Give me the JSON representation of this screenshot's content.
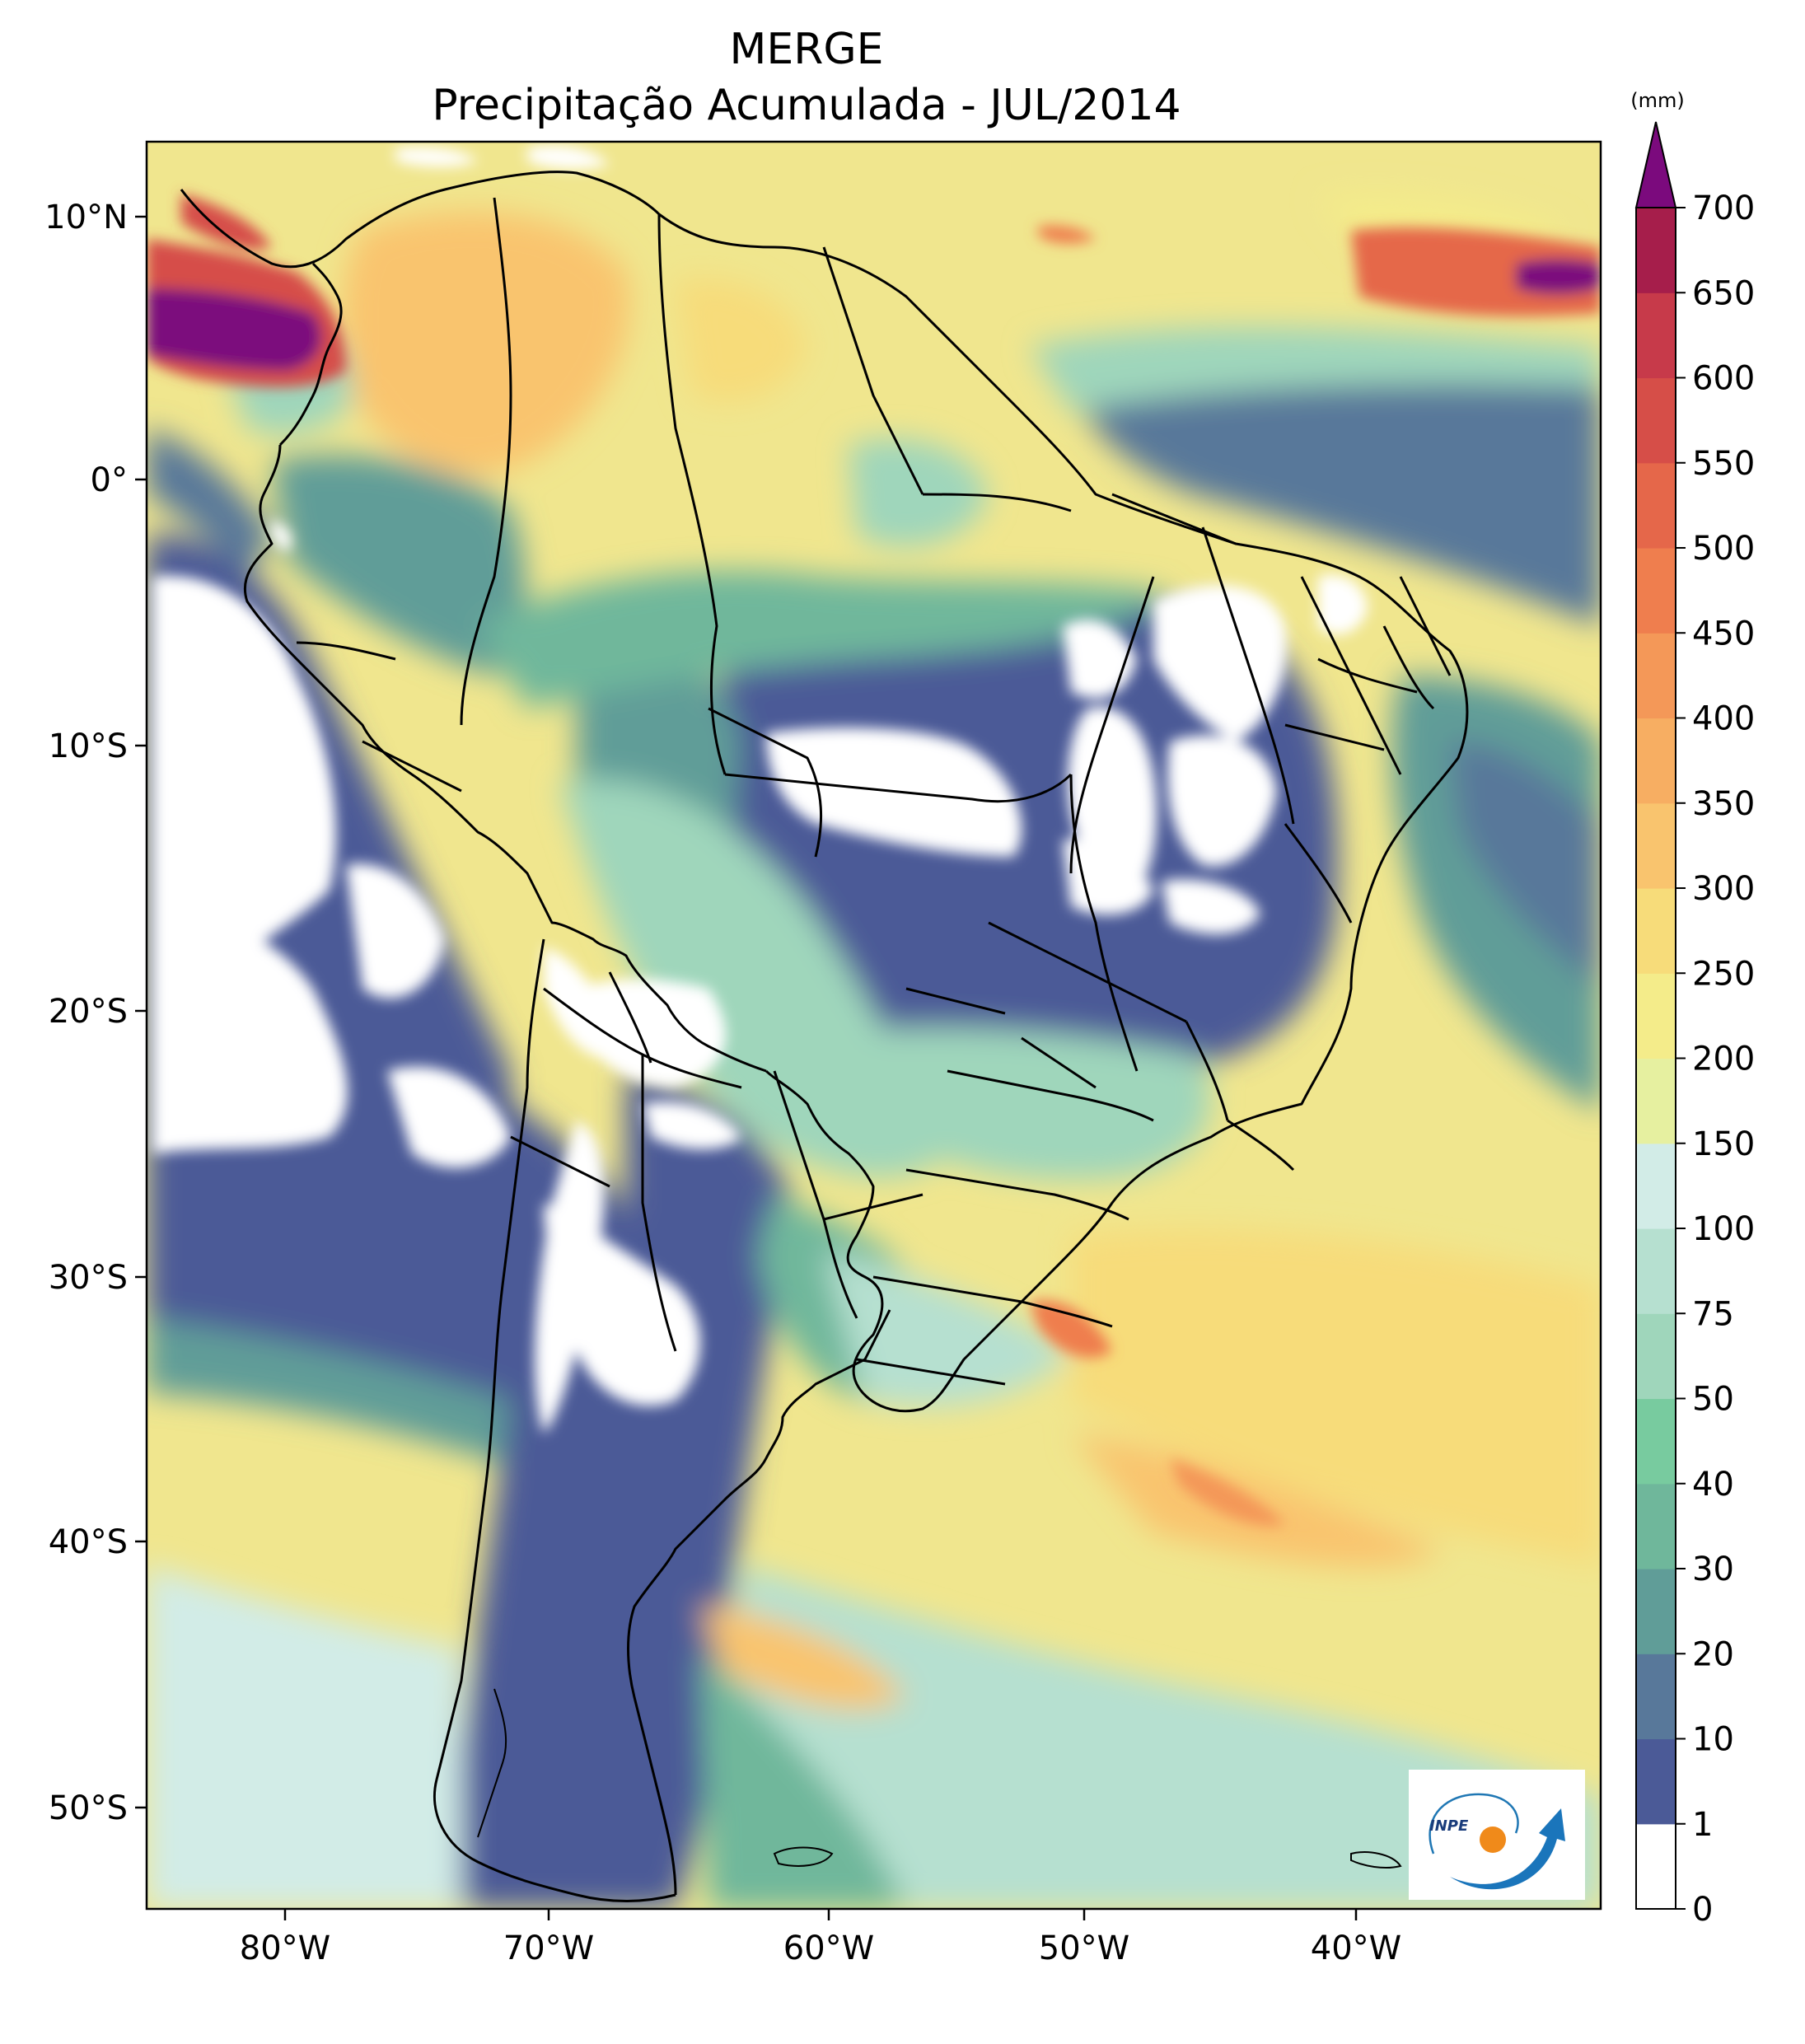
{
  "title_line1": "MERGE",
  "title_line2": "Precipitação Acumulada - JUL/2014",
  "colorbar": {
    "unit": "(mm)",
    "levels": [
      "0",
      "1",
      "10",
      "20",
      "30",
      "40",
      "50",
      "75",
      "100",
      "150",
      "200",
      "250",
      "300",
      "350",
      "400",
      "450",
      "500",
      "550",
      "600",
      "650",
      "700"
    ],
    "colors": [
      "#ffffff",
      "#4b5a97",
      "#58789a",
      "#609d98",
      "#6fb79b",
      "#78cb9f",
      "#9fd6bb",
      "#b6e0d0",
      "#d2ece7",
      "#e6f0a0",
      "#f4ec8a",
      "#f7dc7a",
      "#f9c46e",
      "#f7ae62",
      "#f49858",
      "#ef7e4e",
      "#e5674a",
      "#d64e48",
      "#c73a4a",
      "#a61e4b"
    ],
    "extend_color": "#7b0a7d"
  },
  "lon_ticks": [
    "80°W",
    "70°W",
    "60°W",
    "50°W",
    "40°W"
  ],
  "lat_ticks": [
    "10°N",
    "0°",
    "10°S",
    "20°S",
    "30°S",
    "40°S",
    "50°S"
  ],
  "logo": {
    "text": "INPE"
  }
}
